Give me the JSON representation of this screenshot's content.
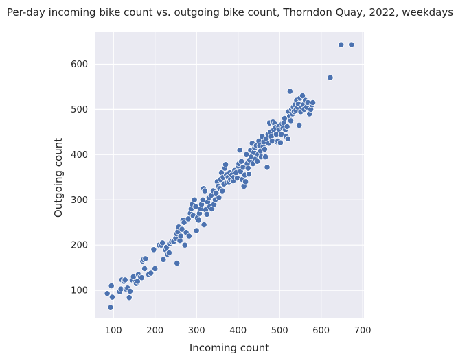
{
  "chart_data": {
    "type": "scatter",
    "title": "Per-day incoming bike count vs. outgoing bike count, Thorndon Quay, 2022, weekdays",
    "xlabel": "Incoming count",
    "ylabel": "Outgoing count",
    "xlim": [
      55,
      703
    ],
    "ylim": [
      38,
      672
    ],
    "xticks": [
      100,
      200,
      300,
      400,
      500,
      600,
      700
    ],
    "yticks": [
      100,
      200,
      300,
      400,
      500,
      600
    ],
    "grid": true,
    "legend": "none",
    "colors": {
      "plot_background": "#eaeaf2",
      "grid": "#ffffff",
      "point_fill": "#4c72b0",
      "point_edge": "#ffffff",
      "text": "#262626"
    },
    "series": [
      {
        "points": [
          [
            85,
            93
          ],
          [
            93,
            62
          ],
          [
            95,
            110
          ],
          [
            97,
            85
          ],
          [
            115,
            97
          ],
          [
            118,
            103
          ],
          [
            120,
            123
          ],
          [
            125,
            120
          ],
          [
            128,
            123
          ],
          [
            130,
            103
          ],
          [
            134,
            105
          ],
          [
            138,
            84
          ],
          [
            140,
            98
          ],
          [
            145,
            123
          ],
          [
            148,
            130
          ],
          [
            152,
            118
          ],
          [
            155,
            115
          ],
          [
            158,
            120
          ],
          [
            160,
            135
          ],
          [
            165,
            130
          ],
          [
            168,
            128
          ],
          [
            170,
            165
          ],
          [
            172,
            168
          ],
          [
            177,
            170
          ],
          [
            175,
            148
          ],
          [
            185,
            135
          ],
          [
            190,
            138
          ],
          [
            197,
            190
          ],
          [
            200,
            148
          ],
          [
            210,
            200
          ],
          [
            215,
            200
          ],
          [
            218,
            205
          ],
          [
            220,
            168
          ],
          [
            225,
            190
          ],
          [
            228,
            195
          ],
          [
            230,
            180
          ],
          [
            234,
            183
          ],
          [
            235,
            203
          ],
          [
            240,
            207
          ],
          [
            245,
            208
          ],
          [
            250,
            215
          ],
          [
            252,
            225
          ],
          [
            253,
            160
          ],
          [
            255,
            230
          ],
          [
            257,
            240
          ],
          [
            260,
            210
          ],
          [
            262,
            220
          ],
          [
            265,
            235
          ],
          [
            267,
            255
          ],
          [
            270,
            250
          ],
          [
            272,
            200
          ],
          [
            275,
            228
          ],
          [
            280,
            258
          ],
          [
            282,
            220
          ],
          [
            285,
            270
          ],
          [
            287,
            280
          ],
          [
            290,
            290
          ],
          [
            292,
            265
          ],
          [
            295,
            300
          ],
          [
            298,
            285
          ],
          [
            300,
            232
          ],
          [
            302,
            260
          ],
          [
            305,
            255
          ],
          [
            307,
            270
          ],
          [
            310,
            280
          ],
          [
            312,
            290
          ],
          [
            315,
            300
          ],
          [
            317,
            325
          ],
          [
            318,
            245
          ],
          [
            320,
            320
          ],
          [
            322,
            278
          ],
          [
            325,
            268
          ],
          [
            327,
            295
          ],
          [
            330,
            305
          ],
          [
            332,
            285
          ],
          [
            335,
            310
          ],
          [
            337,
            280
          ],
          [
            340,
            320
          ],
          [
            342,
            290
          ],
          [
            345,
            300
          ],
          [
            347,
            315
          ],
          [
            350,
            340
          ],
          [
            352,
            330
          ],
          [
            354,
            305
          ],
          [
            356,
            325
          ],
          [
            358,
            345
          ],
          [
            360,
            360
          ],
          [
            362,
            320
          ],
          [
            364,
            350
          ],
          [
            366,
            335
          ],
          [
            368,
            370
          ],
          [
            370,
            378
          ],
          [
            372,
            355
          ],
          [
            374,
            338
          ],
          [
            376,
            350
          ],
          [
            378,
            340
          ],
          [
            380,
            360
          ],
          [
            382,
            345
          ],
          [
            385,
            355
          ],
          [
            388,
            342
          ],
          [
            390,
            350
          ],
          [
            392,
            365
          ],
          [
            395,
            360
          ],
          [
            398,
            348
          ],
          [
            400,
            375
          ],
          [
            402,
            380
          ],
          [
            404,
            410
          ],
          [
            406,
            363
          ],
          [
            408,
            385
          ],
          [
            410,
            345
          ],
          [
            412,
            372
          ],
          [
            414,
            330
          ],
          [
            416,
            355
          ],
          [
            418,
            340
          ],
          [
            420,
            400
          ],
          [
            422,
            380
          ],
          [
            424,
            370
          ],
          [
            426,
            357
          ],
          [
            428,
            388
          ],
          [
            430,
            410
          ],
          [
            432,
            395
          ],
          [
            434,
            425
          ],
          [
            436,
            380
          ],
          [
            438,
            405
          ],
          [
            440,
            415
          ],
          [
            442,
            390
          ],
          [
            444,
            420
          ],
          [
            446,
            385
          ],
          [
            448,
            400
          ],
          [
            450,
            430
          ],
          [
            452,
            420
          ],
          [
            454,
            408
          ],
          [
            456,
            395
          ],
          [
            458,
            440
          ],
          [
            460,
            418
          ],
          [
            462,
            428
          ],
          [
            464,
            412
          ],
          [
            466,
            395
          ],
          [
            468,
            435
          ],
          [
            470,
            372
          ],
          [
            472,
            445
          ],
          [
            474,
            425
          ],
          [
            476,
            470
          ],
          [
            478,
            450
          ],
          [
            480,
            440
          ],
          [
            482,
            430
          ],
          [
            484,
            472
          ],
          [
            486,
            455
          ],
          [
            488,
            468
          ],
          [
            490,
            460
          ],
          [
            492,
            445
          ],
          [
            494,
            428
          ],
          [
            496,
            430
          ],
          [
            498,
            462
          ],
          [
            500,
            455
          ],
          [
            502,
            426
          ],
          [
            504,
            445
          ],
          [
            506,
            468
          ],
          [
            508,
            458
          ],
          [
            510,
            470
          ],
          [
            512,
            480
          ],
          [
            514,
            455
          ],
          [
            516,
            440
          ],
          [
            518,
            462
          ],
          [
            520,
            435
          ],
          [
            522,
            495
          ],
          [
            524,
            485
          ],
          [
            525,
            540
          ],
          [
            527,
            475
          ],
          [
            529,
            500
          ],
          [
            531,
            490
          ],
          [
            533,
            505
          ],
          [
            535,
            495
          ],
          [
            537,
            510
          ],
          [
            539,
            498
          ],
          [
            541,
            520
          ],
          [
            543,
            505
          ],
          [
            545,
            512
          ],
          [
            547,
            465
          ],
          [
            549,
            525
          ],
          [
            551,
            495
          ],
          [
            553,
            505
          ],
          [
            555,
            530
          ],
          [
            557,
            510
          ],
          [
            559,
            500
          ],
          [
            562,
            520
          ],
          [
            565,
            505
          ],
          [
            568,
            515
          ],
          [
            572,
            490
          ],
          [
            575,
            500
          ],
          [
            578,
            510
          ],
          [
            580,
            515
          ],
          [
            622,
            570
          ],
          [
            648,
            643
          ],
          [
            673,
            643
          ]
        ]
      }
    ]
  }
}
